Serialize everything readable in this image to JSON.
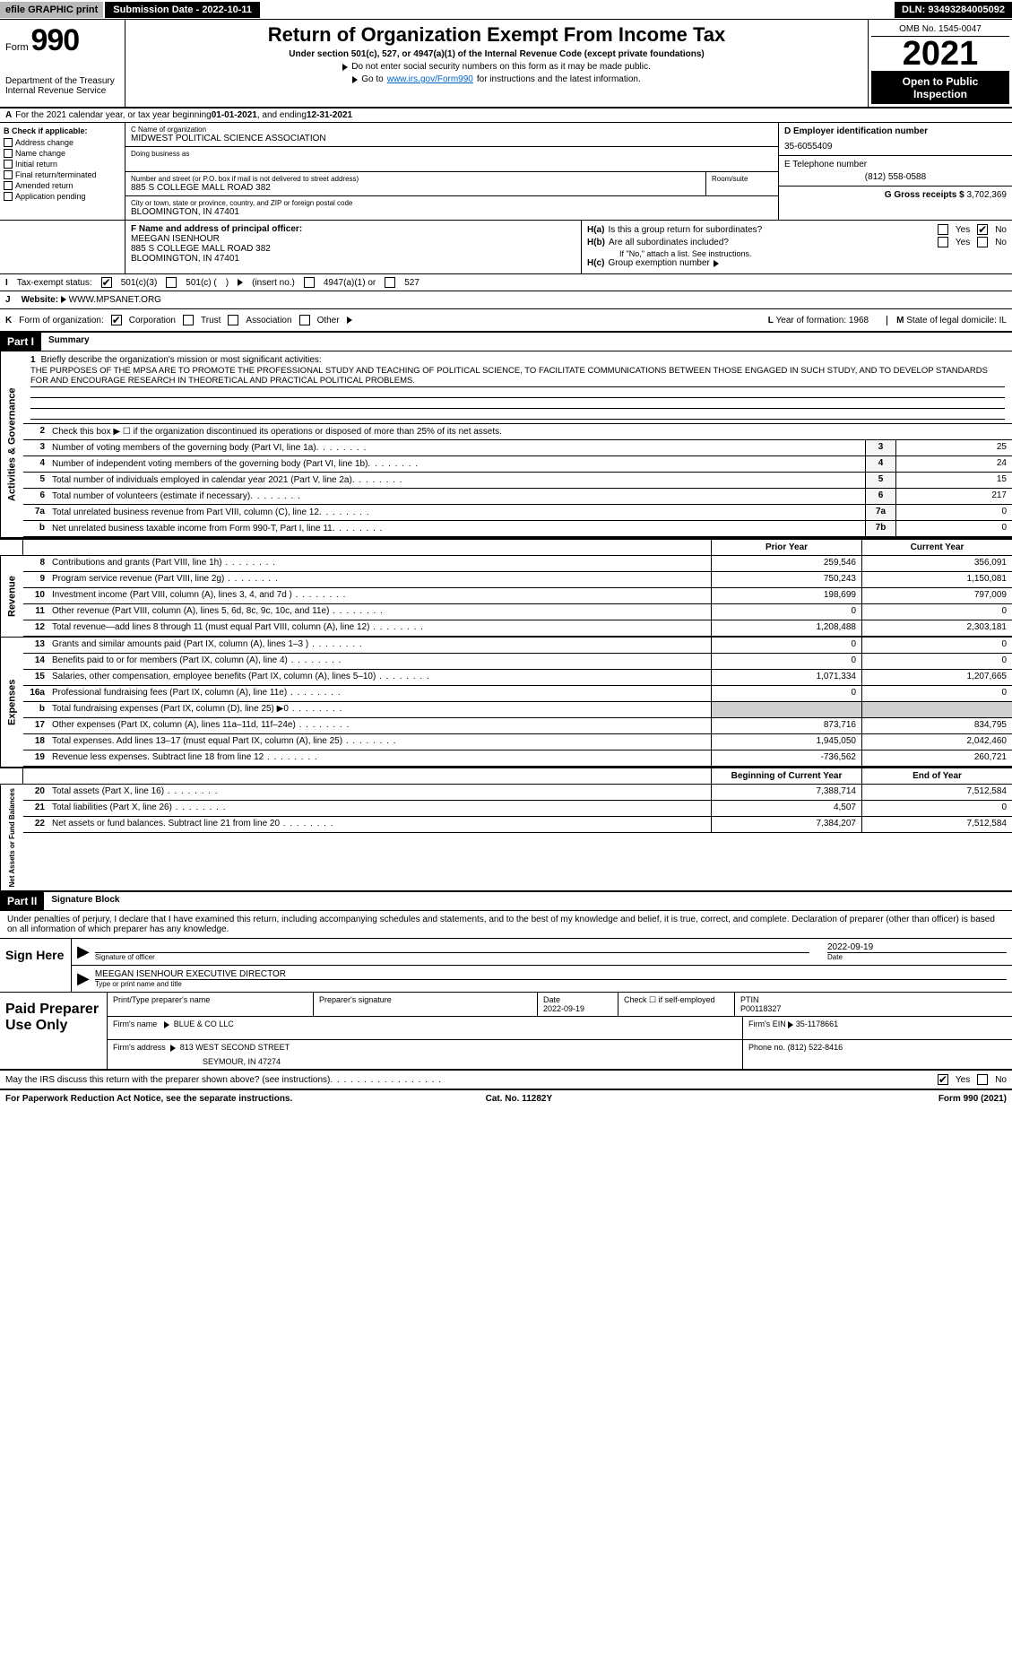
{
  "topbar": {
    "efile_prefix": "efile",
    "efile_text": " GRAPHIC  print",
    "sub_date_label": "Submission Date - 2022-10-11",
    "dln": "DLN: 93493284005092"
  },
  "header": {
    "form_word": "Form",
    "form_number": "990",
    "dept": "Department of the Treasury",
    "irs": "Internal Revenue Service",
    "title": "Return of Organization Exempt From Income Tax",
    "sub1": "Under section 501(c), 527, or 4947(a)(1) of the Internal Revenue Code (except private foundations)",
    "sub2": "Do not enter social security numbers on this form as it may be made public.",
    "sub3_pre": "Go to ",
    "sub3_link": "www.irs.gov/Form990",
    "sub3_post": " for instructions and the latest information.",
    "omb": "OMB No. 1545-0047",
    "year": "2021",
    "open": "Open to Public Inspection"
  },
  "a": {
    "label": "A",
    "text_pre": "For the 2021 calendar year, or tax year beginning ",
    "begin": "01-01-2021",
    "text_mid": "  , and ending ",
    "end": "12-31-2021"
  },
  "b": {
    "header": "B Check if applicable:",
    "items": [
      "Address change",
      "Name change",
      "Initial return",
      "Final return/terminated",
      "Amended return",
      "Application pending"
    ]
  },
  "c": {
    "name_label": "C Name of organization",
    "name": "MIDWEST POLITICAL SCIENCE ASSOCIATION",
    "dba_label": "Doing business as",
    "street_label": "Number and street (or P.O. box if mail is not delivered to street address)",
    "street": "885 S COLLEGE MALL ROAD 382",
    "room_label": "Room/suite",
    "city_label": "City or town, state or province, country, and ZIP or foreign postal code",
    "city": "BLOOMINGTON, IN  47401"
  },
  "d": {
    "label": "D Employer identification number",
    "value": "35-6055409"
  },
  "e": {
    "label": "E Telephone number",
    "value": "(812) 558-0588"
  },
  "g": {
    "label": "G Gross receipts $",
    "value": "3,702,369"
  },
  "f": {
    "label": "F  Name and address of principal officer:",
    "name": "MEEGAN ISENHOUR",
    "addr1": "885 S COLLEGE MALL ROAD 382",
    "addr2": "BLOOMINGTON, IN  47401"
  },
  "h": {
    "a_label": "H(a)",
    "a_text": "Is this a group return for subordinates?",
    "b_label": "H(b)",
    "b_text": "Are all subordinates included?",
    "note": "If \"No,\" attach a list. See instructions.",
    "c_label": "H(c)",
    "c_text": "Group exemption number"
  },
  "i": {
    "label": "I",
    "text": "Tax-exempt status:",
    "o1": "501(c)(3)",
    "o2_a": "501(c) (",
    "o2_b": ")",
    "o2_insert": "(insert no.)",
    "o3": "4947(a)(1) or",
    "o4": "527"
  },
  "j": {
    "label": "J",
    "text": "Website:",
    "value": "WWW.MPSANET.ORG"
  },
  "k": {
    "label": "K",
    "text": "Form of organization:",
    "opts": [
      "Corporation",
      "Trust",
      "Association",
      "Other"
    ],
    "l_label": "L",
    "l_text": "Year of formation:",
    "l_val": "1968",
    "m_label": "M",
    "m_text": "State of legal domicile:",
    "m_val": "IL"
  },
  "part1": {
    "header": "Part I",
    "title": "Summary",
    "vert1": "Activities & Governance",
    "q1_label": "1",
    "q1_text": "Briefly describe the organization's mission or most significant activities:",
    "q1_body": "THE PURPOSES OF THE MPSA ARE TO PROMOTE THE PROFESSIONAL STUDY AND TEACHING OF POLITICAL SCIENCE, TO FACILITATE COMMUNICATIONS BETWEEN THOSE ENGAGED IN SUCH STUDY, AND TO DEVELOP STANDARDS FOR AND ENCOURAGE RESEARCH IN THEORETICAL AND PRACTICAL POLITICAL PROBLEMS.",
    "q2_text": "Check this box ▶ ☐  if the organization discontinued its operations or disposed of more than 25% of its net assets.",
    "rows_ag": [
      {
        "n": "3",
        "desc": "Number of voting members of the governing body (Part VI, line 1a)",
        "box": "3",
        "val": "25"
      },
      {
        "n": "4",
        "desc": "Number of independent voting members of the governing body (Part VI, line 1b)",
        "box": "4",
        "val": "24"
      },
      {
        "n": "5",
        "desc": "Total number of individuals employed in calendar year 2021 (Part V, line 2a)",
        "box": "5",
        "val": "15"
      },
      {
        "n": "6",
        "desc": "Total number of volunteers (estimate if necessary)",
        "box": "6",
        "val": "217"
      },
      {
        "n": "7a",
        "desc": "Total unrelated business revenue from Part VIII, column (C), line 12",
        "box": "7a",
        "val": "0"
      },
      {
        "n": "b",
        "desc": "Net unrelated business taxable income from Form 990-T, Part I, line 11",
        "box": "7b",
        "val": "0"
      }
    ],
    "hdr_prior": "Prior Year",
    "hdr_current": "Current Year",
    "vert2": "Revenue",
    "rows_rev": [
      {
        "n": "8",
        "desc": "Contributions and grants (Part VIII, line 1h)",
        "c1": "259,546",
        "c2": "356,091"
      },
      {
        "n": "9",
        "desc": "Program service revenue (Part VIII, line 2g)",
        "c1": "750,243",
        "c2": "1,150,081"
      },
      {
        "n": "10",
        "desc": "Investment income (Part VIII, column (A), lines 3, 4, and 7d )",
        "c1": "198,699",
        "c2": "797,009"
      },
      {
        "n": "11",
        "desc": "Other revenue (Part VIII, column (A), lines 5, 6d, 8c, 9c, 10c, and 11e)",
        "c1": "0",
        "c2": "0"
      },
      {
        "n": "12",
        "desc": "Total revenue—add lines 8 through 11 (must equal Part VIII, column (A), line 12)",
        "c1": "1,208,488",
        "c2": "2,303,181"
      }
    ],
    "vert3": "Expenses",
    "rows_exp": [
      {
        "n": "13",
        "desc": "Grants and similar amounts paid (Part IX, column (A), lines 1–3 )",
        "c1": "0",
        "c2": "0"
      },
      {
        "n": "14",
        "desc": "Benefits paid to or for members (Part IX, column (A), line 4)",
        "c1": "0",
        "c2": "0"
      },
      {
        "n": "15",
        "desc": "Salaries, other compensation, employee benefits (Part IX, column (A), lines 5–10)",
        "c1": "1,071,334",
        "c2": "1,207,665"
      },
      {
        "n": "16a",
        "desc": "Professional fundraising fees (Part IX, column (A), line 11e)",
        "c1": "0",
        "c2": "0"
      },
      {
        "n": "b",
        "desc": "Total fundraising expenses (Part IX, column (D), line 25) ▶0",
        "c1": "",
        "c2": "",
        "shaded": true
      },
      {
        "n": "17",
        "desc": "Other expenses (Part IX, column (A), lines 11a–11d, 11f–24e)",
        "c1": "873,716",
        "c2": "834,795"
      },
      {
        "n": "18",
        "desc": "Total expenses. Add lines 13–17 (must equal Part IX, column (A), line 25)",
        "c1": "1,945,050",
        "c2": "2,042,460"
      },
      {
        "n": "19",
        "desc": "Revenue less expenses. Subtract line 18 from line 12",
        "c1": "-736,562",
        "c2": "260,721"
      }
    ],
    "hdr_begin": "Beginning of Current Year",
    "hdr_end": "End of Year",
    "vert4": "Net Assets or Fund Balances",
    "rows_na": [
      {
        "n": "20",
        "desc": "Total assets (Part X, line 16)",
        "c1": "7,388,714",
        "c2": "7,512,584"
      },
      {
        "n": "21",
        "desc": "Total liabilities (Part X, line 26)",
        "c1": "4,507",
        "c2": "0"
      },
      {
        "n": "22",
        "desc": "Net assets or fund balances. Subtract line 21 from line 20",
        "c1": "7,384,207",
        "c2": "7,512,584"
      }
    ]
  },
  "part2": {
    "header": "Part II",
    "title": "Signature Block",
    "decl": "Under penalties of perjury, I declare that I have examined this return, including accompanying schedules and statements, and to the best of my knowledge and belief, it is true, correct, and complete. Declaration of preparer (other than officer) is based on all information of which preparer has any knowledge.",
    "sign_here": "Sign Here",
    "sig_officer": "Signature of officer",
    "sig_date": "2022-09-19",
    "date_lbl": "Date",
    "officer_name": "MEEGAN ISENHOUR  EXECUTIVE DIRECTOR",
    "type_lbl": "Type or print name and title",
    "paid": "Paid Preparer Use Only",
    "prep_name_lbl": "Print/Type preparer's name",
    "prep_sig_lbl": "Preparer's signature",
    "prep_date_lbl": "Date",
    "prep_date": "2022-09-19",
    "check_if": "Check ☐ if self-employed",
    "ptin_lbl": "PTIN",
    "ptin": "P00118327",
    "firm_name_lbl": "Firm's name",
    "firm_name": "BLUE & CO LLC",
    "firm_ein_lbl": "Firm's EIN",
    "firm_ein": "35-1178661",
    "firm_addr_lbl": "Firm's address",
    "firm_addr1": "813 WEST SECOND STREET",
    "firm_addr2": "SEYMOUR, IN  47274",
    "phone_lbl": "Phone no.",
    "phone": "(812) 522-8416",
    "may_irs": "May the IRS discuss this return with the preparer shown above? (see instructions)"
  },
  "footer": {
    "left": "For Paperwork Reduction Act Notice, see the separate instructions.",
    "mid": "Cat. No. 11282Y",
    "right": "Form 990 (2021)"
  }
}
